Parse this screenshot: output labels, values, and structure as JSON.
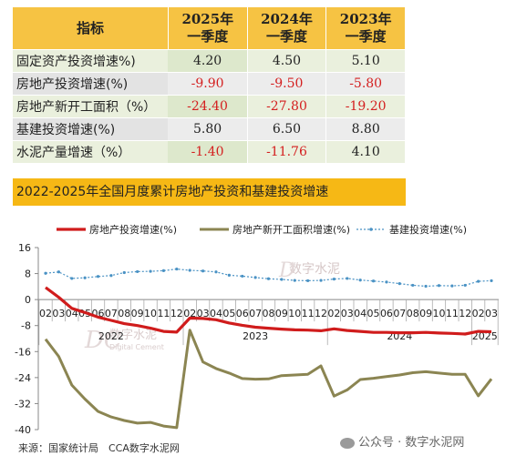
{
  "table": {
    "headers": [
      "指标",
      "2025年\n一季度",
      "2024年\n一季度",
      "2023年\n一季度"
    ],
    "rows": [
      {
        "label": "固定资产投资增速%)",
        "values": [
          "4.20",
          "4.50",
          "5.10"
        ]
      },
      {
        "label": "房地产投资增速(%)",
        "values": [
          "-9.90",
          "-9.50",
          "-5.80"
        ]
      },
      {
        "label": "房地产新开工面积（%）",
        "values": [
          "-24.40",
          "-27.80",
          "-19.20"
        ]
      },
      {
        "label": "基建投资增速(%)",
        "values": [
          "5.80",
          "6.50",
          "8.80"
        ]
      },
      {
        "label": "水泥产量增速（%）",
        "values": [
          "-1.40",
          "-11.76",
          "4.10"
        ]
      }
    ]
  },
  "chart_title": "2022-2025年全国月度累计房地产投资和基建投资增速",
  "source": "来源：国家统计局　CCA数字水泥网",
  "watermark": {
    "logo_text": "数字水泥",
    "logo_sub": "Digital Cement",
    "footer": "公众号 · 数字水泥网"
  },
  "colors": {
    "real_estate": "#d01c1c",
    "new_starts": "#8b8552",
    "infrastructure": "#4a92c4",
    "header": "#f6c343",
    "title_bar": "#f6b815"
  },
  "chart_data": {
    "type": "line",
    "x": [
      "02",
      "03",
      "04",
      "05",
      "06",
      "07",
      "08",
      "09",
      "10",
      "11",
      "12",
      "02",
      "03",
      "04",
      "05",
      "06",
      "07",
      "08",
      "09",
      "10",
      "11",
      "12",
      "02",
      "03",
      "04",
      "05",
      "06",
      "07",
      "08",
      "09",
      "10",
      "11",
      "12",
      "02",
      "03"
    ],
    "year_labels": [
      {
        "label": "2022",
        "start": 0,
        "end": 10
      },
      {
        "label": "2023",
        "start": 11,
        "end": 21
      },
      {
        "label": "2024",
        "start": 22,
        "end": 32
      },
      {
        "label": "2025",
        "start": 33,
        "end": 34
      }
    ],
    "ylim": [
      -40,
      16
    ],
    "yticks": [
      "16",
      "8",
      "0",
      "-8",
      "-16",
      "-24",
      "-32",
      "-40"
    ],
    "legend_position": "top",
    "series": [
      {
        "name": "房地产投资增速(%)",
        "style": "solid-thick",
        "values": [
          3.7,
          0.7,
          -2.7,
          -4.0,
          -5.4,
          -6.4,
          -7.4,
          -8.0,
          -8.8,
          -9.8,
          -10.0,
          -5.7,
          -5.8,
          -6.2,
          -7.2,
          -7.9,
          -8.5,
          -8.8,
          -9.1,
          -9.3,
          -9.4,
          -9.6,
          -9.0,
          -9.5,
          -9.8,
          -10.1,
          -10.1,
          -10.2,
          -10.2,
          -10.1,
          -10.3,
          -10.4,
          -10.6,
          -9.8,
          -9.9
        ]
      },
      {
        "name": "房地产新开工面积增速(%)",
        "style": "solid",
        "values": [
          -12.2,
          -17.5,
          -26.3,
          -30.6,
          -34.4,
          -36.1,
          -37.2,
          -38.0,
          -37.8,
          -38.9,
          -39.4,
          -9.4,
          -19.2,
          -21.2,
          -22.6,
          -24.3,
          -24.5,
          -24.4,
          -23.4,
          -23.2,
          -23.0,
          -20.4,
          -29.7,
          -27.8,
          -24.6,
          -24.2,
          -23.7,
          -23.2,
          -22.5,
          -22.2,
          -22.6,
          -23.0,
          -23.0,
          -29.6,
          -24.4
        ]
      },
      {
        "name": "基建投资增速(%)",
        "style": "dotted-markers",
        "values": [
          8.1,
          8.5,
          6.5,
          6.7,
          7.1,
          7.4,
          8.3,
          8.6,
          8.7,
          8.9,
          9.4,
          9.0,
          8.8,
          8.5,
          7.5,
          7.2,
          6.8,
          6.4,
          6.2,
          5.9,
          5.8,
          5.9,
          6.3,
          6.5,
          6.0,
          5.7,
          5.4,
          4.9,
          4.4,
          4.1,
          4.3,
          4.2,
          4.4,
          5.6,
          5.8
        ]
      }
    ]
  }
}
